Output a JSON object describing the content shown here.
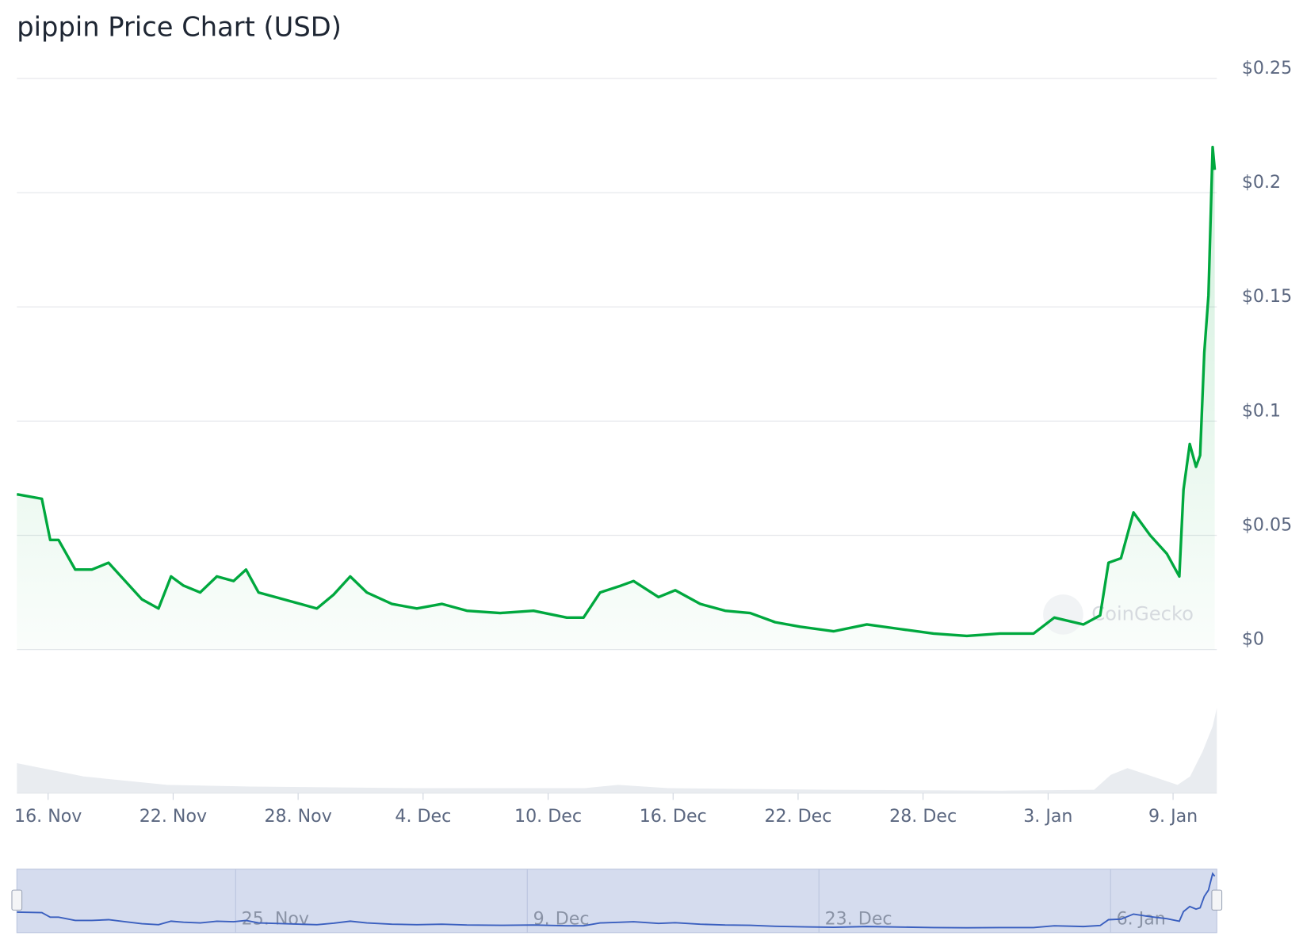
{
  "chart_data": {
    "type": "line",
    "title": "pippin Price Chart (USD)",
    "watermark": "CoinGecko",
    "x": [
      -0.5,
      0.7,
      1.1,
      1.5,
      2.3,
      3.1,
      3.9,
      4.7,
      5.5,
      6.3,
      6.9,
      7.5,
      8.3,
      9.1,
      9.9,
      10.5,
      11.1,
      11.9,
      13.1,
      13.9,
      14.7,
      15.5,
      16.3,
      17.5,
      18.7,
      19.9,
      21.1,
      22.7,
      24.3,
      25.9,
      26.7,
      27.5,
      28.5,
      29.1,
      30.3,
      31.1,
      32.3,
      33.5,
      34.7,
      35.9,
      37.1,
      38.7,
      40.3,
      41.9,
      43.5,
      45.1,
      46.7,
      48.3,
      49.3,
      50.7,
      51.5,
      51.9,
      52.5,
      53.1,
      53.9,
      54.7,
      55.3,
      55.5,
      55.8,
      56.1,
      56.3,
      56.5,
      56.7,
      56.9,
      57.0
    ],
    "series": [
      {
        "name": "pippin",
        "color": "#00a83e",
        "values": [
          0.068,
          0.066,
          0.048,
          0.048,
          0.035,
          0.035,
          0.038,
          0.03,
          0.022,
          0.018,
          0.032,
          0.028,
          0.025,
          0.032,
          0.03,
          0.035,
          0.025,
          0.023,
          0.02,
          0.018,
          0.024,
          0.032,
          0.025,
          0.02,
          0.018,
          0.02,
          0.017,
          0.016,
          0.017,
          0.014,
          0.014,
          0.025,
          0.028,
          0.03,
          0.023,
          0.026,
          0.02,
          0.017,
          0.016,
          0.012,
          0.01,
          0.008,
          0.011,
          0.009,
          0.007,
          0.006,
          0.007,
          0.007,
          0.014,
          0.011,
          0.015,
          0.038,
          0.04,
          0.06,
          0.05,
          0.042,
          0.032,
          0.07,
          0.09,
          0.08,
          0.085,
          0.13,
          0.155,
          0.22,
          0.21
        ]
      }
    ],
    "xlim": [
      -0.5,
      57.1
    ],
    "xticks": [
      {
        "value": 1,
        "label": "16. Nov"
      },
      {
        "value": 7,
        "label": "22. Nov"
      },
      {
        "value": 13,
        "label": "28. Nov"
      },
      {
        "value": 19,
        "label": "4. Dec"
      },
      {
        "value": 25,
        "label": "10. Dec"
      },
      {
        "value": 31,
        "label": "16. Dec"
      },
      {
        "value": 37,
        "label": "22. Dec"
      },
      {
        "value": 43,
        "label": "28. Dec"
      },
      {
        "value": 49,
        "label": "3. Jan"
      },
      {
        "value": 55,
        "label": "9. Jan"
      }
    ],
    "ylim": [
      0,
      0.25
    ],
    "yticks": [
      {
        "value": 0,
        "label": "$0"
      },
      {
        "value": 0.05,
        "label": "$0.05"
      },
      {
        "value": 0.1,
        "label": "$0.1"
      },
      {
        "value": 0.15,
        "label": "$0.15"
      },
      {
        "value": 0.2,
        "label": "$0.2"
      },
      {
        "value": 0.25,
        "label": "$0.25"
      }
    ],
    "grid": true,
    "navigator_xticks": [
      {
        "value": 10,
        "label": "25. Nov"
      },
      {
        "value": 24,
        "label": "9. Dec"
      },
      {
        "value": 38,
        "label": "23. Dec"
      },
      {
        "value": 52,
        "label": "6. Jan"
      }
    ]
  }
}
